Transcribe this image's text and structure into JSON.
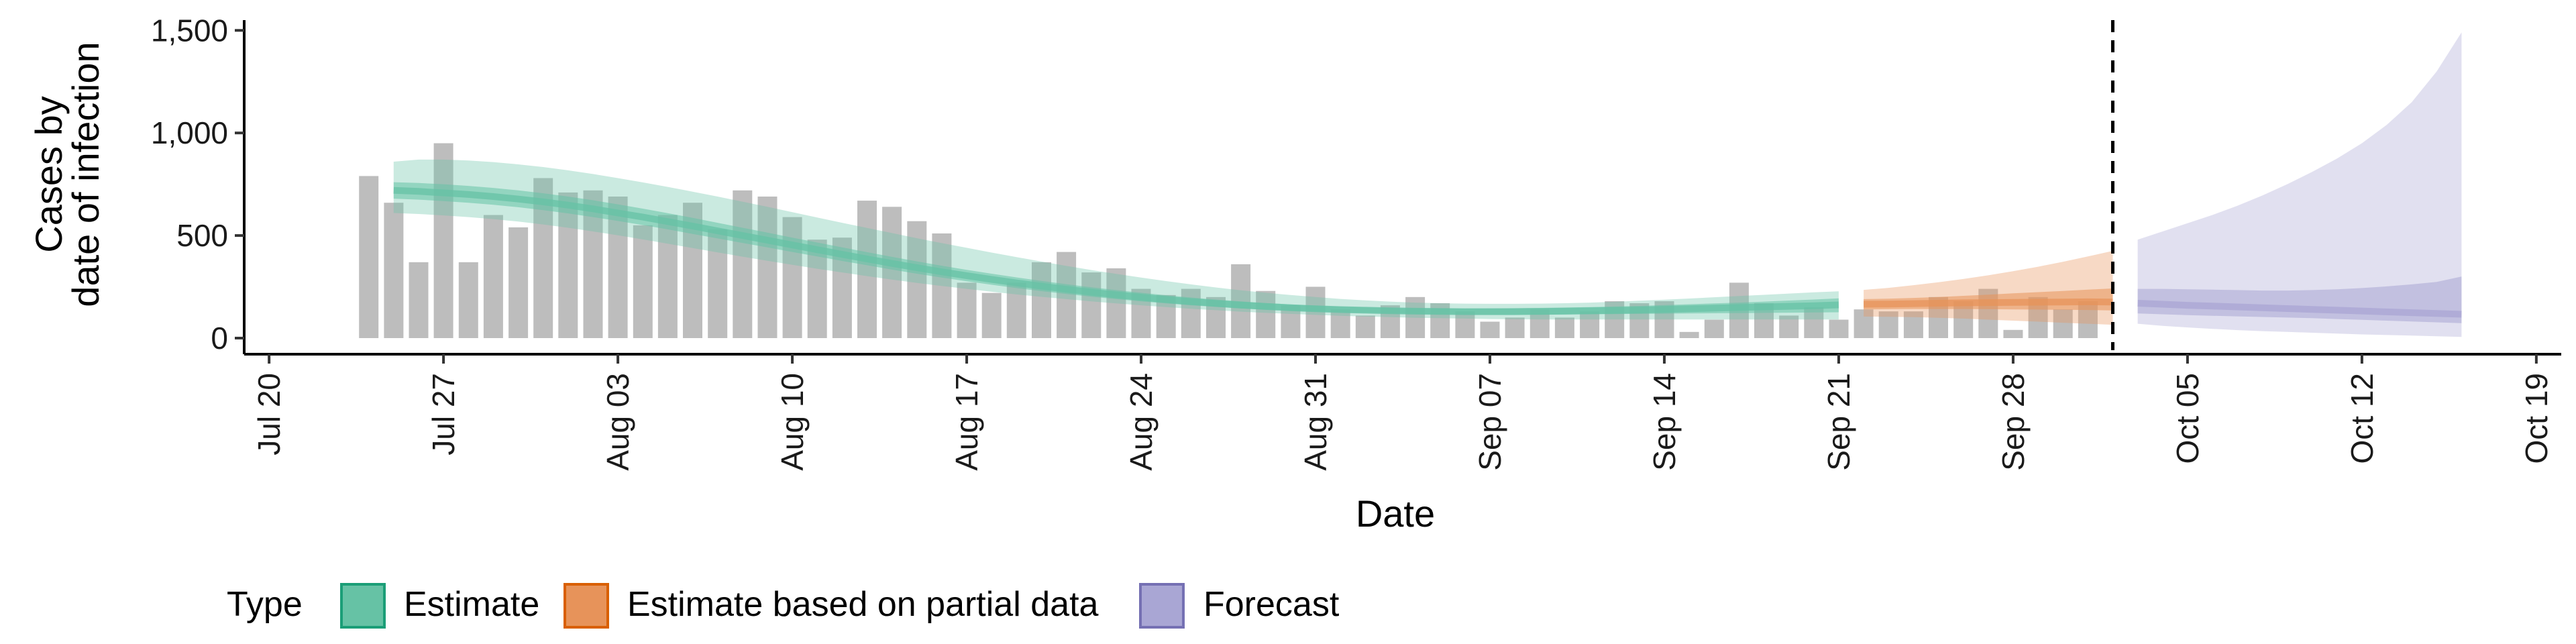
{
  "chart_data": {
    "type": "bar",
    "xlabel": "Date",
    "ylabel_lines": [
      "Cases by",
      "date of infection"
    ],
    "ylim": [
      0,
      1550
    ],
    "xlim": [
      "2020-07-19",
      "2020-10-20"
    ],
    "y_ticks": [
      0,
      500,
      1000,
      1500
    ],
    "y_tick_labels": [
      "0",
      "500",
      "1,000",
      "1,500"
    ],
    "x_ticks": [
      "2020-07-20",
      "2020-07-27",
      "2020-08-03",
      "2020-08-10",
      "2020-08-17",
      "2020-08-24",
      "2020-08-31",
      "2020-09-07",
      "2020-09-14",
      "2020-09-21",
      "2020-09-28",
      "2020-10-05",
      "2020-10-12",
      "2020-10-19"
    ],
    "x_tick_labels": [
      "Jul 20",
      "Jul 27",
      "Aug 03",
      "Aug 10",
      "Aug 17",
      "Aug 24",
      "Aug 31",
      "Sep 07",
      "Sep 14",
      "Sep 21",
      "Sep 28",
      "Oct 05",
      "Oct 12",
      "Oct 19"
    ],
    "reference_line_date": "2020-10-02",
    "grid": false,
    "bars": {
      "start_date": "2020-07-24",
      "color": "#bdbdbd",
      "values": [
        790,
        660,
        370,
        950,
        370,
        600,
        540,
        780,
        710,
        720,
        690,
        550,
        600,
        660,
        530,
        720,
        690,
        590,
        480,
        490,
        670,
        640,
        570,
        510,
        270,
        220,
        270,
        370,
        420,
        320,
        340,
        240,
        210,
        240,
        200,
        360,
        230,
        160,
        250,
        140,
        110,
        160,
        200,
        170,
        130,
        80,
        100,
        140,
        100,
        130,
        180,
        170,
        180,
        30,
        90,
        270,
        170,
        110,
        150,
        90,
        140,
        130,
        130,
        200,
        180,
        240,
        40,
        200,
        140,
        180,
        null,
        null
      ]
    },
    "legend": {
      "title": "Type",
      "position": "bottom",
      "items": [
        {
          "label": "Estimate",
          "fill": "#66c2a5",
          "stroke": "#1b9e77"
        },
        {
          "label": "Estimate based on partial data",
          "fill": "#e7935a",
          "stroke": "#d95f02"
        },
        {
          "label": "Forecast",
          "fill": "#a9a6d4",
          "stroke": "#7570b3"
        }
      ]
    },
    "series": [
      {
        "type_index": 0,
        "start_date": "2020-07-25",
        "median": [
          720,
          715,
          708,
          700,
          690,
          678,
          664,
          648,
          630,
          610,
          590,
          568,
          546,
          523,
          500,
          477,
          454,
          431,
          408,
          386,
          364,
          343,
          323,
          304,
          286,
          269,
          253,
          238,
          224,
          211,
          199,
          188,
          178,
          169,
          161,
          154,
          148,
          143,
          139,
          136,
          133,
          131,
          130,
          129,
          129,
          129,
          130,
          131,
          133,
          135,
          137,
          140,
          143,
          146,
          149,
          152,
          155,
          158,
          162
        ],
        "inner_lower": [
          680,
          675,
          668,
          660,
          650,
          638,
          624,
          608,
          590,
          571,
          551,
          530,
          508,
          486,
          464,
          442,
          420,
          398,
          376,
          355,
          334,
          314,
          295,
          277,
          260,
          244,
          229,
          215,
          202,
          190,
          179,
          169,
          160,
          152,
          145,
          139,
          134,
          130,
          126,
          123,
          120,
          118,
          116,
          115,
          114,
          114,
          114,
          115,
          116,
          117,
          118,
          119,
          120,
          121,
          122,
          123,
          124,
          125,
          126
        ],
        "inner_upper": [
          760,
          756,
          750,
          742,
          732,
          720,
          706,
          690,
          672,
          652,
          631,
          609,
          586,
          562,
          538,
          514,
          490,
          466,
          442,
          419,
          396,
          374,
          353,
          333,
          314,
          296,
          279,
          263,
          248,
          234,
          221,
          209,
          198,
          188,
          179,
          171,
          164,
          158,
          153,
          150,
          147,
          145,
          144,
          144,
          145,
          146,
          147,
          149,
          151,
          154,
          157,
          161,
          165,
          169,
          173,
          178,
          183,
          188,
          194
        ],
        "outer_lower": [
          610,
          605,
          598,
          590,
          580,
          568,
          554,
          538,
          520,
          501,
          481,
          460,
          439,
          418,
          397,
          377,
          357,
          338,
          320,
          302,
          285,
          269,
          254,
          240,
          226,
          213,
          201,
          190,
          179,
          169,
          160,
          151,
          143,
          136,
          129,
          123,
          118,
          113,
          109,
          105,
          102,
          99,
          97,
          95,
          93,
          92,
          91,
          91,
          91,
          91,
          91,
          91,
          91,
          91,
          91,
          91,
          91,
          91,
          91
        ],
        "outer_upper": [
          860,
          870,
          870,
          866,
          858,
          847,
          834,
          818,
          800,
          780,
          759,
          737,
          714,
          690,
          665,
          640,
          614,
          588,
          562,
          537,
          512,
          487,
          463,
          440,
          417,
          395,
          373,
          352,
          332,
          313,
          295,
          278,
          262,
          247,
          233,
          221,
          210,
          200,
          191,
          184,
          178,
          173,
          170,
          168,
          167,
          167,
          168,
          170,
          173,
          177,
          182,
          187,
          193,
          199,
          205,
          211,
          217,
          223,
          228
        ]
      },
      {
        "type_index": 1,
        "start_date": "2020-09-22",
        "median": [
          165,
          166,
          168,
          170,
          172,
          173,
          174,
          175,
          176,
          177,
          176
        ],
        "inner_lower": [
          140,
          141,
          142,
          142,
          142,
          141,
          140,
          139,
          138,
          137,
          135
        ],
        "inner_upper": [
          190,
          192,
          196,
          200,
          206,
          212,
          218,
          224,
          230,
          236,
          242
        ],
        "outer_lower": [
          105,
          104,
          102,
          99,
          95,
          90,
          85,
          80,
          75,
          70,
          65
        ],
        "outer_upper": [
          235,
          245,
          258,
          272,
          288,
          306,
          326,
          348,
          372,
          398,
          425
        ]
      },
      {
        "type_index": 2,
        "start_date": "2020-10-03",
        "median": [
          170,
          165,
          160,
          156,
          152,
          148,
          144,
          140,
          136,
          132,
          128,
          124,
          120,
          116
        ],
        "inner_lower": [
          120,
          116,
          112,
          109,
          106,
          103,
          100,
          97,
          93,
          89,
          85,
          81,
          77,
          73
        ],
        "inner_upper": [
          240,
          240,
          238,
          236,
          234,
          232,
          232,
          234,
          238,
          244,
          252,
          262,
          274,
          300
        ],
        "outer_lower": [
          70,
          60,
          52,
          45,
          39,
          34,
          30,
          26,
          22,
          18,
          15,
          12,
          9,
          6
        ],
        "outer_upper": [
          480,
          520,
          560,
          600,
          645,
          695,
          750,
          810,
          875,
          950,
          1040,
          1150,
          1300,
          1490
        ]
      }
    ]
  }
}
